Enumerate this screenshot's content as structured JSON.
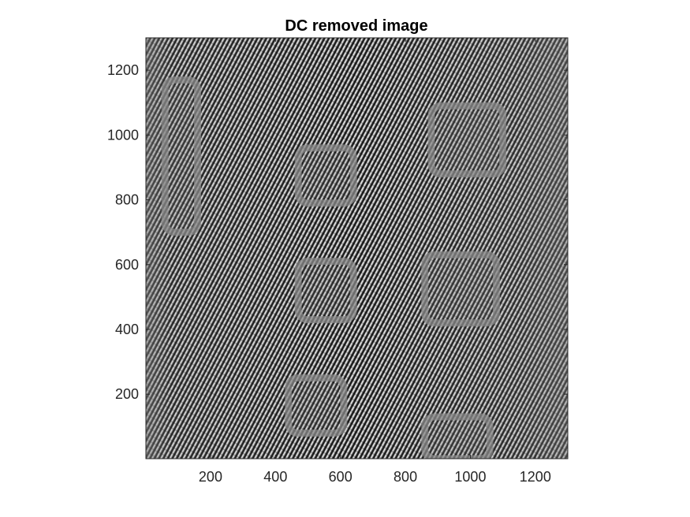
{
  "chart_data": {
    "type": "heatmap",
    "title": "DC removed image",
    "xlabel": "",
    "ylabel": "",
    "xlim": [
      1,
      1300
    ],
    "ylim": [
      1,
      1300
    ],
    "y_direction": "normal",
    "xticks": [
      200,
      400,
      600,
      800,
      1000,
      1200
    ],
    "yticks": [
      200,
      400,
      600,
      800,
      1000,
      1200
    ],
    "xtick_labels": [
      "200",
      "400",
      "600",
      "800",
      "1000",
      "1200"
    ],
    "ytick_labels": [
      "200",
      "400",
      "600",
      "800",
      "1000",
      "1200"
    ],
    "colormap": "gray",
    "grid": false,
    "legend": "none",
    "colors": {
      "background_gray": "#808080",
      "axis": "#262626",
      "title": "#000000"
    },
    "texture": "high-frequency diagonal fringe pattern with faint rectangular outlines",
    "regions": [
      {
        "name": "left-bar",
        "x": [
          60,
          160
        ],
        "y": [
          700,
          1170
        ],
        "kind": "rounded-rect"
      },
      {
        "name": "mid-top",
        "x": [
          470,
          640
        ],
        "y": [
          790,
          960
        ],
        "kind": "rounded-rect"
      },
      {
        "name": "mid-center",
        "x": [
          470,
          640
        ],
        "y": [
          430,
          610
        ],
        "kind": "rounded-rect"
      },
      {
        "name": "mid-bottom",
        "x": [
          440,
          610
        ],
        "y": [
          80,
          250
        ],
        "kind": "rounded-rect"
      },
      {
        "name": "right-top",
        "x": [
          880,
          1100
        ],
        "y": [
          880,
          1090
        ],
        "kind": "rounded-rect"
      },
      {
        "name": "right-center",
        "x": [
          860,
          1080
        ],
        "y": [
          420,
          630
        ],
        "kind": "rounded-rect"
      },
      {
        "name": "right-bottom",
        "x": [
          860,
          1060
        ],
        "y": [
          1,
          130
        ],
        "kind": "rounded-rect"
      }
    ]
  }
}
